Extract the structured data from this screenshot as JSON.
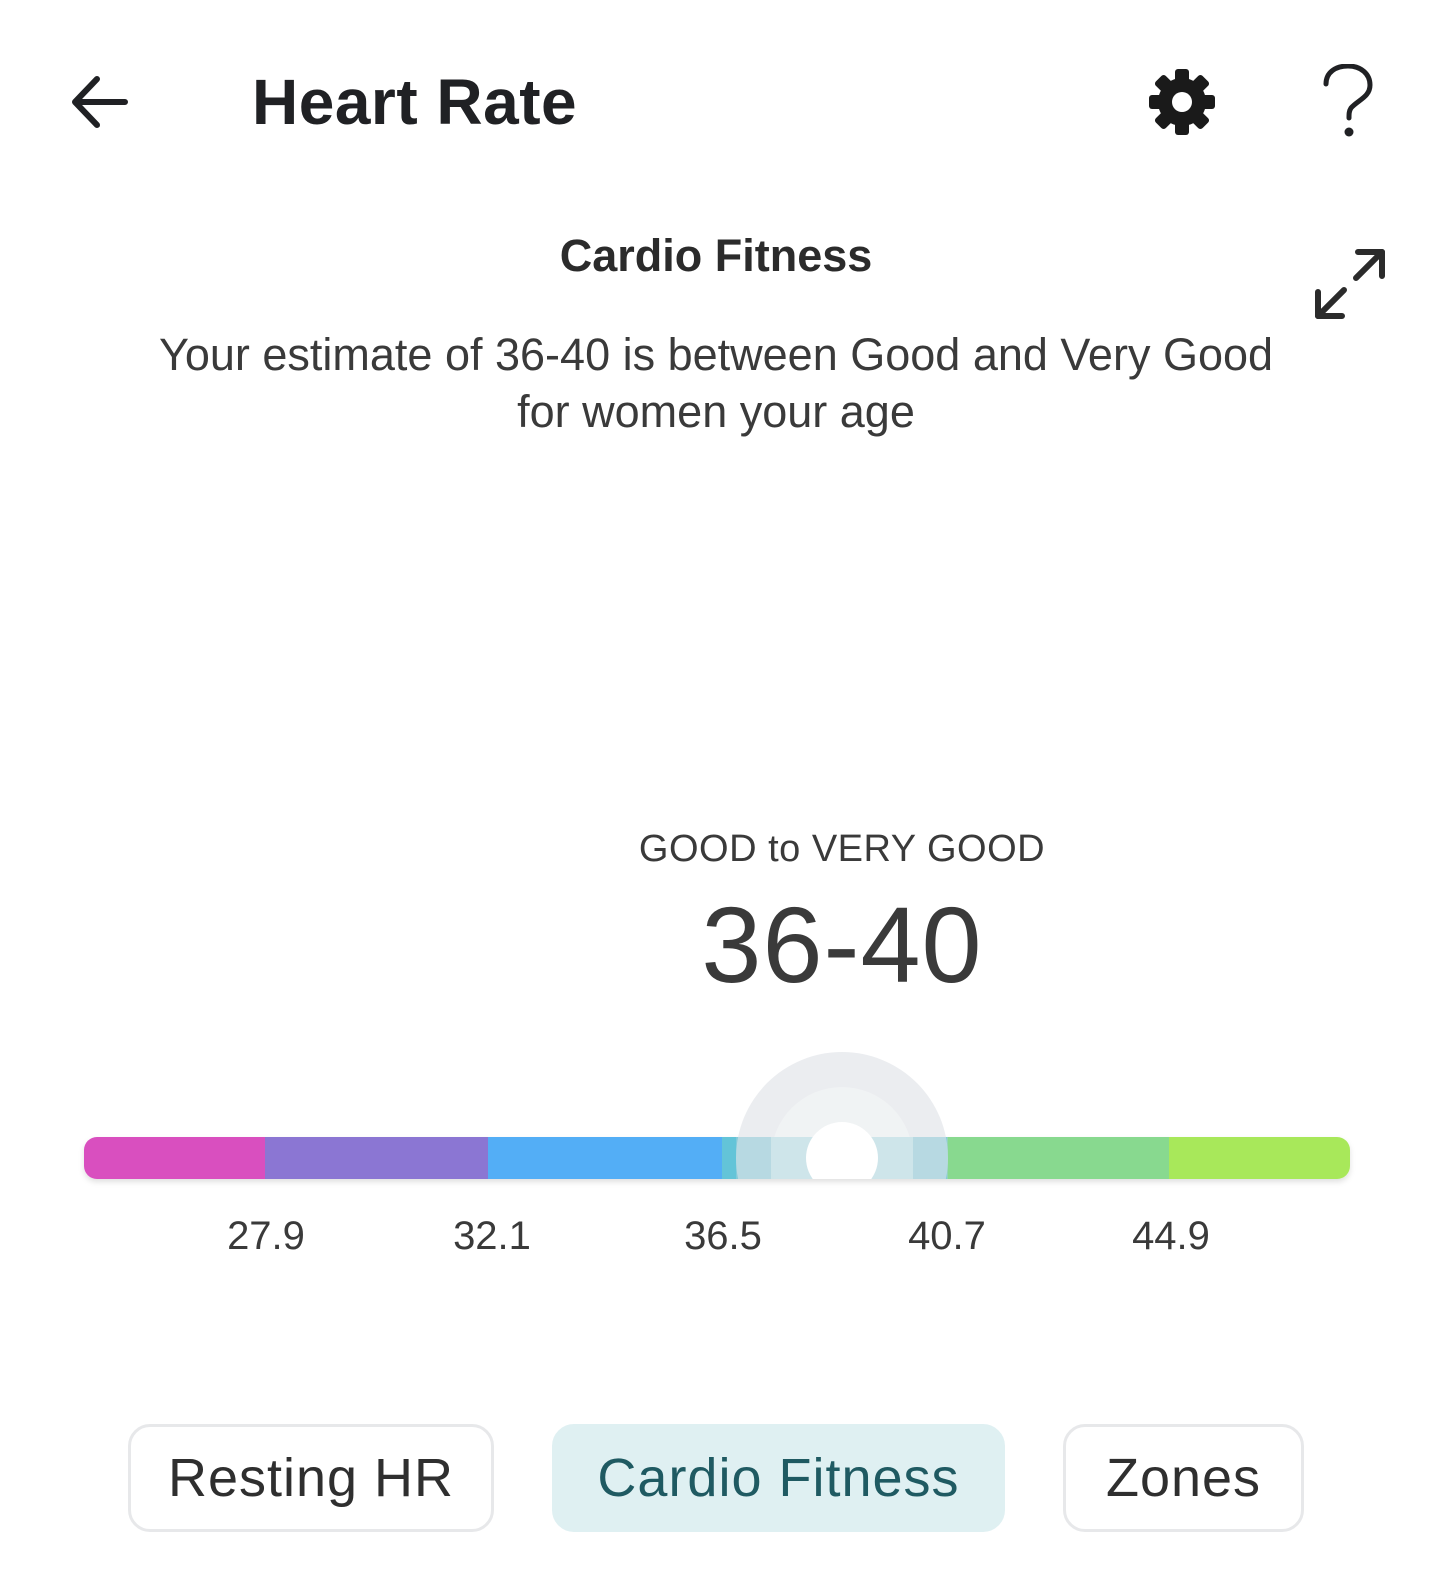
{
  "header": {
    "title": "Heart Rate",
    "back_icon": "arrow-left-icon",
    "settings_icon": "gear-icon",
    "help_icon": "question-mark-icon"
  },
  "section": {
    "title": "Cardio Fitness",
    "expand_icon": "expand-icon",
    "description": "Your estimate of 36-40 is between Good and Very Good for women your age"
  },
  "gauge": {
    "range_label": "GOOD to VERY GOOD",
    "range_value": "36-40",
    "ticks": [
      "27.9",
      "32.1",
      "36.5",
      "40.7",
      "44.9"
    ],
    "segment_colors": [
      "#d94fbf",
      "#8b76d3",
      "#52aef6",
      "#64c4d8",
      "#88d98f",
      "#a8e85a"
    ],
    "highlight_color": "#9fd0da",
    "marker_value": 38.6
  },
  "tabs": [
    {
      "label": "Resting HR",
      "active": false
    },
    {
      "label": "Cardio Fitness",
      "active": true
    },
    {
      "label": "Zones",
      "active": false
    }
  ]
}
